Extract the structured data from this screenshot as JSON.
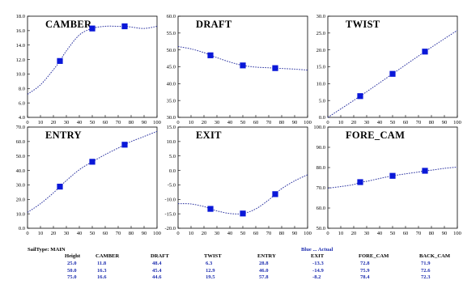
{
  "chart_data": [
    {
      "type": "line",
      "title": "CAMBER",
      "xlim": [
        0,
        100
      ],
      "ylim": [
        4.0,
        18.0
      ],
      "x_ticks": [
        "0",
        "10",
        "20",
        "30",
        "40",
        "50",
        "60",
        "70",
        "80",
        "90",
        "100"
      ],
      "y_ticks": [
        "4.0",
        "6.0",
        "8.0",
        "10.0",
        "12.0",
        "14.0",
        "16.0",
        "18.0"
      ],
      "grid": false,
      "curve": {
        "x": [
          0,
          10,
          20,
          25,
          30,
          40,
          50,
          60,
          70,
          75,
          80,
          90,
          100
        ],
        "y": [
          7.2,
          8.5,
          10.6,
          11.8,
          13.2,
          15.4,
          16.3,
          16.6,
          16.6,
          16.6,
          16.5,
          16.3,
          16.6
        ]
      },
      "points": {
        "x": [
          25,
          50,
          75
        ],
        "y": [
          11.8,
          16.3,
          16.6
        ]
      }
    },
    {
      "type": "line",
      "title": "DRAFT",
      "xlim": [
        0,
        100
      ],
      "ylim": [
        30.0,
        60.0
      ],
      "x_ticks": [
        "0",
        "10",
        "20",
        "30",
        "40",
        "50",
        "60",
        "70",
        "80",
        "90",
        "100"
      ],
      "y_ticks": [
        "30.0",
        "35.0",
        "40.0",
        "45.0",
        "50.0",
        "55.0",
        "60.0"
      ],
      "grid": false,
      "curve": {
        "x": [
          0,
          10,
          20,
          25,
          30,
          40,
          50,
          60,
          70,
          75,
          80,
          90,
          100
        ],
        "y": [
          51.0,
          50.3,
          49.2,
          48.4,
          47.7,
          46.4,
          45.4,
          44.9,
          44.7,
          44.6,
          44.5,
          44.3,
          44.0
        ]
      },
      "points": {
        "x": [
          25,
          50,
          75
        ],
        "y": [
          48.4,
          45.4,
          44.6
        ]
      }
    },
    {
      "type": "line",
      "title": "TWIST",
      "xlim": [
        0,
        100
      ],
      "ylim": [
        0.0,
        30.0
      ],
      "x_ticks": [
        "0",
        "10",
        "20",
        "30",
        "40",
        "50",
        "60",
        "70",
        "80",
        "90",
        "100"
      ],
      "y_ticks": [
        "0.0",
        "5.0",
        "10.0",
        "15.0",
        "20.0",
        "25.0",
        "30.0"
      ],
      "grid": false,
      "curve": {
        "x": [
          0,
          25,
          50,
          75,
          100
        ],
        "y": [
          0.0,
          6.3,
          12.9,
          19.5,
          25.8
        ]
      },
      "points": {
        "x": [
          25,
          50,
          75
        ],
        "y": [
          6.3,
          12.9,
          19.5
        ]
      }
    },
    {
      "type": "line",
      "title": "ENTRY",
      "xlim": [
        0,
        100
      ],
      "ylim": [
        0.0,
        70.0
      ],
      "x_ticks": [
        "0",
        "10",
        "20",
        "30",
        "40",
        "50",
        "60",
        "70",
        "80",
        "90",
        "100"
      ],
      "y_ticks": [
        "0.0",
        "10.0",
        "20.0",
        "30.0",
        "40.0",
        "50.0",
        "60.0",
        "70.0"
      ],
      "grid": false,
      "curve": {
        "x": [
          0,
          10,
          20,
          25,
          30,
          40,
          50,
          60,
          70,
          75,
          80,
          90,
          100
        ],
        "y": [
          11.0,
          17.0,
          24.5,
          28.8,
          33.0,
          40.5,
          46.0,
          51.0,
          55.5,
          57.8,
          60.0,
          63.5,
          67.0
        ]
      },
      "points": {
        "x": [
          25,
          50,
          75
        ],
        "y": [
          28.8,
          46.0,
          57.8
        ]
      }
    },
    {
      "type": "line",
      "title": "EXIT",
      "xlim": [
        0,
        100
      ],
      "ylim": [
        -20.0,
        15.0
      ],
      "x_ticks": [
        "0",
        "10",
        "20",
        "30",
        "40",
        "50",
        "60",
        "70",
        "80",
        "90",
        "100"
      ],
      "y_ticks": [
        "-20.0",
        "-15.0",
        "-10.0",
        "-5.0",
        "0.0",
        "5.0",
        "10.0",
        "15.0"
      ],
      "grid": false,
      "curve": {
        "x": [
          0,
          10,
          20,
          25,
          30,
          40,
          50,
          60,
          70,
          75,
          80,
          90,
          100
        ],
        "y": [
          -11.5,
          -11.6,
          -12.5,
          -13.3,
          -14.0,
          -14.9,
          -14.9,
          -13.3,
          -10.2,
          -8.2,
          -6.3,
          -3.6,
          -1.5
        ]
      },
      "points": {
        "x": [
          25,
          50,
          75
        ],
        "y": [
          -13.3,
          -14.9,
          -8.2
        ]
      }
    },
    {
      "type": "line",
      "title": "FORE_CAM",
      "xlim": [
        0,
        100
      ],
      "ylim": [
        50.0,
        100.0
      ],
      "x_ticks": [
        "0",
        "10",
        "20",
        "30",
        "40",
        "50",
        "60",
        "70",
        "80",
        "90",
        "100"
      ],
      "y_ticks": [
        "50.0",
        "60.0",
        "70.0",
        "80.0",
        "90.0",
        "100.0"
      ],
      "grid": false,
      "curve": {
        "x": [
          0,
          10,
          20,
          25,
          30,
          40,
          50,
          60,
          70,
          75,
          80,
          90,
          100
        ],
        "y": [
          69.8,
          70.6,
          71.6,
          72.8,
          73.2,
          74.6,
          75.9,
          76.9,
          77.8,
          78.4,
          78.7,
          79.6,
          80.2
        ]
      },
      "points": {
        "x": [
          25,
          50,
          75
        ],
        "y": [
          72.8,
          75.9,
          78.4
        ]
      }
    }
  ],
  "table": {
    "sail_type_label": "SailType: MAIN",
    "legend_note": "Blue ... Actual",
    "headers": [
      "Height",
      "CAMBER",
      "DRAFT",
      "TWIST",
      "ENTRY",
      "EXIT",
      "FORE_CAM",
      "BACK_CAM"
    ],
    "rows": [
      [
        "25.0",
        "11.8",
        "48.4",
        "6.3",
        "28.8",
        "-13.3",
        "72.8",
        "71.9"
      ],
      [
        "50.0",
        "16.3",
        "45.4",
        "12.9",
        "46.0",
        "-14.9",
        "75.9",
        "72.6"
      ],
      [
        "75.0",
        "16.6",
        "44.6",
        "19.5",
        "57.8",
        "-8.2",
        "78.4",
        "72.3"
      ]
    ]
  },
  "colors": {
    "curve": "#2a32a0",
    "marker": "#0a18d8",
    "table_values": "#1f2fb0"
  }
}
